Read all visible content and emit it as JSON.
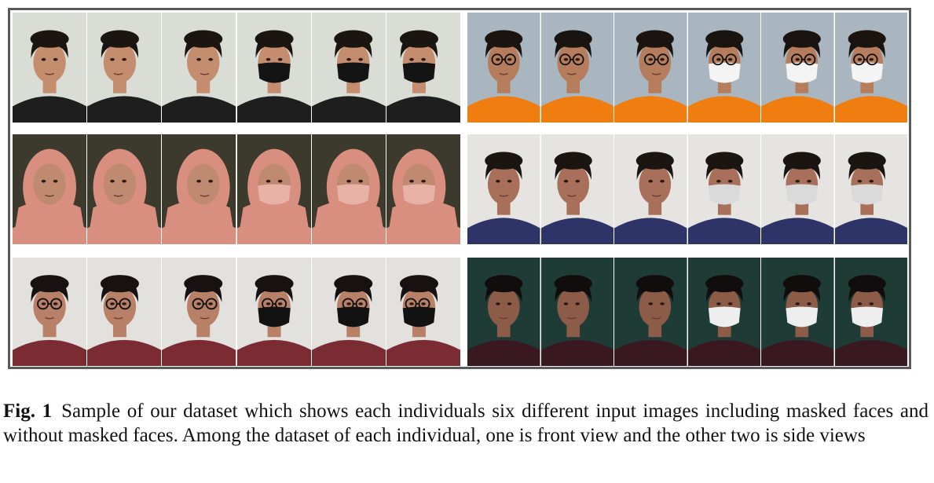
{
  "figure": {
    "label": "Fig. 1",
    "caption": "Sample of our dataset which shows each individuals six different input images including masked faces and without masked faces. Among the dataset of each individual, one is front view and the other two is side views"
  },
  "panels": [
    {
      "id": "p1",
      "colors": {
        "bg": "#d9ddd6",
        "skin": "#c48e6e",
        "hair": "#1b1512",
        "shirt": "#1e1e1e",
        "mask": "#141414"
      },
      "faces": [
        {
          "view": "front",
          "masked": false,
          "glasses": false
        },
        {
          "view": "side",
          "masked": false,
          "glasses": false
        },
        {
          "view": "side",
          "masked": false,
          "glasses": false
        },
        {
          "view": "front",
          "masked": true,
          "glasses": false
        },
        {
          "view": "side",
          "masked": true,
          "glasses": false
        },
        {
          "view": "side",
          "masked": true,
          "glasses": false
        }
      ]
    },
    {
      "id": "p2",
      "colors": {
        "bg": "#a9b6c0",
        "skin": "#b57d5c",
        "hair": "#1a1410",
        "shirt": "#f07d10",
        "mask": "#f4f4f4"
      },
      "faces": [
        {
          "view": "front",
          "masked": false,
          "glasses": true
        },
        {
          "view": "side",
          "masked": false,
          "glasses": true
        },
        {
          "view": "side",
          "masked": false,
          "glasses": true
        },
        {
          "view": "front",
          "masked": true,
          "glasses": true
        },
        {
          "view": "side",
          "masked": true,
          "glasses": true
        },
        {
          "view": "side",
          "masked": true,
          "glasses": true
        }
      ]
    },
    {
      "id": "p3",
      "colors": {
        "bg": "#3b3a2c",
        "skin": "#c08a70",
        "hair": "#d98f80",
        "shirt": "#d98f80",
        "mask": "#e8b3a6"
      },
      "hijab": true,
      "faces": [
        {
          "view": "front",
          "masked": false,
          "glasses": false
        },
        {
          "view": "side",
          "masked": false,
          "glasses": false
        },
        {
          "view": "side",
          "masked": false,
          "glasses": false
        },
        {
          "view": "front",
          "masked": true,
          "glasses": false
        },
        {
          "view": "side",
          "masked": true,
          "glasses": false
        },
        {
          "view": "side",
          "masked": true,
          "glasses": false
        }
      ]
    },
    {
      "id": "p4",
      "colors": {
        "bg": "#e6e4e0",
        "skin": "#a8705a",
        "hair": "#1b1512",
        "shirt": "#2f3468",
        "mask": "#dadada"
      },
      "faces": [
        {
          "view": "front",
          "masked": false,
          "glasses": false
        },
        {
          "view": "side",
          "masked": false,
          "glasses": false
        },
        {
          "view": "side",
          "masked": false,
          "glasses": false
        },
        {
          "view": "front",
          "masked": true,
          "glasses": false
        },
        {
          "view": "side",
          "masked": true,
          "glasses": false
        },
        {
          "view": "side",
          "masked": true,
          "glasses": false
        }
      ]
    },
    {
      "id": "p5",
      "colors": {
        "bg": "#e2e1de",
        "skin": "#b98068",
        "hair": "#171211",
        "shirt": "#7a2c32",
        "mask": "#121212"
      },
      "faces": [
        {
          "view": "front",
          "masked": false,
          "glasses": true
        },
        {
          "view": "side",
          "masked": false,
          "glasses": true
        },
        {
          "view": "side",
          "masked": false,
          "glasses": true
        },
        {
          "view": "front",
          "masked": true,
          "glasses": true
        },
        {
          "view": "side",
          "masked": true,
          "glasses": true
        },
        {
          "view": "side",
          "masked": true,
          "glasses": true
        }
      ]
    },
    {
      "id": "p6",
      "colors": {
        "bg": "#1f3b36",
        "skin": "#8c5c48",
        "hair": "#110d0c",
        "shirt": "#3a1820",
        "mask": "#eeeeee"
      },
      "faces": [
        {
          "view": "front",
          "masked": false,
          "glasses": false
        },
        {
          "view": "side",
          "masked": false,
          "glasses": false
        },
        {
          "view": "side",
          "masked": false,
          "glasses": false
        },
        {
          "view": "front",
          "masked": true,
          "glasses": false
        },
        {
          "view": "side",
          "masked": true,
          "glasses": false
        },
        {
          "view": "side",
          "masked": true,
          "glasses": false
        }
      ]
    }
  ]
}
